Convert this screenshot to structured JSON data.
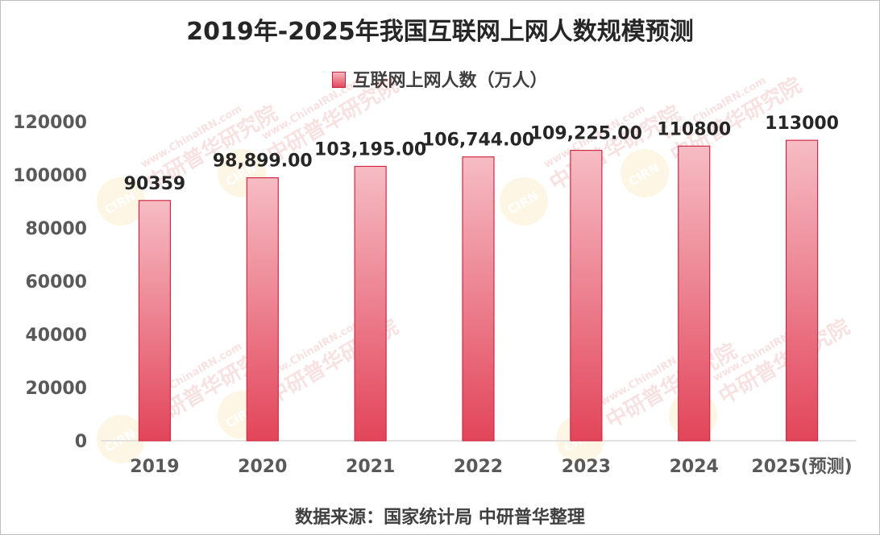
{
  "watermark": {
    "brand": "CIRN",
    "site": "www.ChinaIRN.com",
    "name": "中研普华研究院"
  },
  "colors": {
    "bar_top": "#f6bcc4",
    "bar_bottom": "#e2455a",
    "bar_stroke": "#d12a44",
    "axis": "#d9d9d9"
  },
  "chart_data": {
    "type": "bar",
    "title": "2019年-2025年我国互联网上网人数规模预测",
    "xlabel": "",
    "ylabel": "",
    "categories": [
      "2019",
      "2020",
      "2021",
      "2022",
      "2023",
      "2024",
      "2025(预测)"
    ],
    "series": [
      {
        "name": "互联网上网人数（万人）",
        "values": [
          90359,
          98899,
          103195,
          106744,
          109225,
          110800,
          113000
        ],
        "labels": [
          "90359",
          "98,899.00",
          "103,195.00",
          "106,744.00",
          "109,225.00",
          "110800",
          "113000"
        ]
      }
    ],
    "ylim": [
      0,
      120000
    ],
    "yticks": [
      "0",
      "20000",
      "40000",
      "60000",
      "80000",
      "100000",
      "120000"
    ],
    "grid": false,
    "legend": "top",
    "source": "数据来源：国家统计局 中研普华整理"
  }
}
